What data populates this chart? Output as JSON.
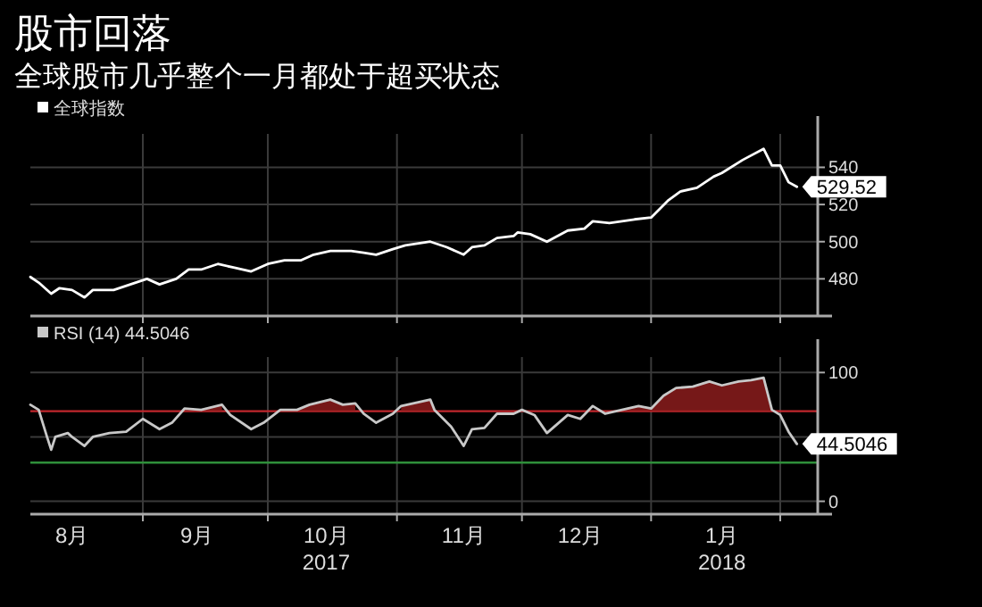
{
  "chart_data": [
    {
      "type": "line",
      "title": "股市回落",
      "subtitle": "全球股市几乎整个一月都处于超买状态",
      "legend": "top left",
      "grid": true,
      "tick_labels": "y",
      "xlim": [
        "2017-08-05",
        "2018-02-10"
      ],
      "ylim": [
        460,
        558
      ],
      "yticks": [
        480,
        500,
        520,
        540
      ],
      "xticks": [
        {
          "value": "2017-09-01",
          "label": null
        },
        {
          "value": "2017-10-01",
          "label": null
        },
        {
          "value": "2017-11-01",
          "label": null
        },
        {
          "value": "2017-12-01",
          "label": null
        },
        {
          "value": "2018-01-01",
          "label": null
        },
        {
          "value": "2018-02-01",
          "label": null
        }
      ],
      "series": [
        {
          "name": "全球指数",
          "color": "#ffffff",
          "x": [
            "2017-08-05",
            "2017-08-07",
            "2017-08-10",
            "2017-08-12",
            "2017-08-15",
            "2017-08-18",
            "2017-08-20",
            "2017-08-25",
            "2017-08-29",
            "2017-09-02",
            "2017-09-05",
            "2017-09-09",
            "2017-09-12",
            "2017-09-15",
            "2017-09-19",
            "2017-09-23",
            "2017-09-27",
            "2017-10-01",
            "2017-10-05",
            "2017-10-09",
            "2017-10-12",
            "2017-10-16",
            "2017-10-21",
            "2017-10-24",
            "2017-10-27",
            "2017-10-31",
            "2017-11-03",
            "2017-11-09",
            "2017-11-13",
            "2017-11-17",
            "2017-11-19",
            "2017-11-22",
            "2017-11-25",
            "2017-11-29",
            "2017-11-30",
            "2017-12-03",
            "2017-12-07",
            "2017-12-12",
            "2017-12-16",
            "2017-12-18",
            "2017-12-22",
            "2017-12-28",
            "2018-01-01",
            "2018-01-05",
            "2018-01-08",
            "2018-01-12",
            "2018-01-16",
            "2018-01-18",
            "2018-01-23",
            "2018-01-28",
            "2018-01-30",
            "2018-02-01",
            "2018-02-03",
            "2018-02-05"
          ],
          "values": [
            481,
            478,
            472,
            475,
            474,
            470,
            474,
            474,
            477,
            480,
            477,
            480,
            485,
            485,
            488,
            486,
            484,
            488,
            490,
            490,
            493,
            495,
            495,
            494,
            493,
            496,
            498,
            500,
            497,
            493,
            497,
            498,
            502,
            503,
            505,
            504,
            500,
            506,
            507,
            511,
            510,
            512,
            513,
            522,
            527,
            529,
            535,
            537,
            544,
            550,
            541,
            541,
            532,
            529.52
          ],
          "value_labels": [
            null,
            null,
            null,
            null,
            null,
            null,
            null,
            null,
            null,
            null,
            null,
            null,
            null,
            null,
            null,
            null,
            null,
            null,
            null,
            null,
            null,
            null,
            null,
            null,
            null,
            null,
            null,
            null,
            null,
            null,
            null,
            null,
            null,
            null,
            null,
            null,
            null,
            null,
            null,
            null,
            null,
            null,
            null,
            null,
            null,
            null,
            null,
            null,
            null,
            null,
            null,
            null,
            null,
            "529.52"
          ]
        }
      ]
    },
    {
      "type": "line",
      "legend": "top left",
      "grid": true,
      "xlim": [
        "2017-08-05",
        "2018-02-10"
      ],
      "ylim": [
        -10,
        112
      ],
      "yticks": [
        0,
        {
          "value": 50,
          "label": null
        },
        100
      ],
      "xticks": [
        {
          "value": "2017-08-15",
          "label": "8月"
        },
        {
          "value": "2017-09-01",
          "label": null
        },
        {
          "value": "2017-09-14",
          "label": "9月"
        },
        {
          "value": "2017-10-01",
          "label": null
        },
        {
          "value": "2017-10-15",
          "label": "10月\n2017"
        },
        {
          "value": "2017-11-01",
          "label": null
        },
        {
          "value": "2017-11-17",
          "label": "11月"
        },
        {
          "value": "2017-12-01",
          "label": null
        },
        {
          "value": "2017-12-15",
          "label": "12月"
        },
        {
          "value": "2018-01-01",
          "label": null
        },
        {
          "value": "2018-01-18",
          "label": "1月\n2018"
        },
        {
          "value": "2018-02-01",
          "label": null
        }
      ],
      "ref_lines": [
        {
          "axis": "y",
          "value": 70,
          "color": "#c0272d"
        },
        {
          "axis": "y",
          "value": 30,
          "color": "#2f8f3a"
        }
      ],
      "series": [
        {
          "name": "RSI (14) 44.5046",
          "color": "#c8c8c8",
          "x": [
            "2017-08-05",
            "2017-08-07",
            "2017-08-09",
            "2017-08-10",
            "2017-08-11",
            "2017-08-14",
            "2017-08-15",
            "2017-08-18",
            "2017-08-20",
            "2017-08-24",
            "2017-08-28",
            "2017-09-01",
            "2017-09-05",
            "2017-09-08",
            "2017-09-11",
            "2017-09-15",
            "2017-09-20",
            "2017-09-22",
            "2017-09-27",
            "2017-09-30",
            "2017-10-04",
            "2017-10-08",
            "2017-10-11",
            "2017-10-16",
            "2017-10-19",
            "2017-10-22",
            "2017-10-24",
            "2017-10-27",
            "2017-10-31",
            "2017-11-02",
            "2017-11-09",
            "2017-11-10",
            "2017-11-14",
            "2017-11-17",
            "2017-11-19",
            "2017-11-22",
            "2017-11-25",
            "2017-11-29",
            "2017-12-01",
            "2017-12-04",
            "2017-12-07",
            "2017-12-12",
            "2017-12-15",
            "2017-12-18",
            "2017-12-21",
            "2017-12-25",
            "2017-12-29",
            "2018-01-01",
            "2018-01-04",
            "2018-01-07",
            "2018-01-11",
            "2018-01-15",
            "2018-01-18",
            "2018-01-22",
            "2018-01-25",
            "2018-01-28",
            "2018-01-30",
            "2018-02-01",
            "2018-02-03",
            "2018-02-05"
          ],
          "values": [
            75,
            71,
            50,
            40,
            50,
            53,
            50,
            43,
            50,
            53,
            54,
            64,
            56,
            61,
            72,
            71,
            75,
            67,
            56,
            61,
            71,
            71,
            75,
            79,
            75,
            76,
            68,
            61,
            68,
            74,
            79,
            71,
            58,
            43,
            56,
            57,
            68,
            68,
            71,
            67,
            53,
            67,
            64,
            74,
            68,
            71,
            74,
            72,
            82,
            88,
            89,
            93,
            90,
            93,
            94,
            96,
            71,
            67,
            54,
            44.5046
          ],
          "upper": [
            null,
            null,
            null,
            null,
            null,
            null,
            null,
            null,
            null,
            null,
            null,
            null,
            null,
            null,
            72,
            71,
            75,
            null,
            null,
            null,
            71,
            71,
            75,
            79,
            75,
            76,
            null,
            null,
            null,
            74,
            79,
            71,
            null,
            null,
            null,
            null,
            null,
            null,
            null,
            null,
            null,
            null,
            null,
            null,
            null,
            71,
            74,
            72,
            82,
            88,
            89,
            93,
            90,
            93,
            94,
            96,
            71,
            null,
            null,
            null
          ],
          "lower": [
            null,
            null,
            null,
            null,
            null,
            null,
            null,
            null,
            null,
            null,
            null,
            null,
            null,
            null,
            70,
            70,
            70,
            null,
            null,
            null,
            70,
            70,
            70,
            70,
            70,
            70,
            null,
            null,
            null,
            70,
            70,
            70,
            null,
            null,
            null,
            null,
            null,
            null,
            null,
            null,
            null,
            null,
            null,
            null,
            null,
            70,
            70,
            70,
            70,
            70,
            70,
            70,
            70,
            70,
            70,
            70,
            70,
            null,
            null,
            null
          ],
          "value_labels": [
            null,
            null,
            null,
            null,
            null,
            null,
            null,
            null,
            null,
            null,
            null,
            null,
            null,
            null,
            null,
            null,
            null,
            null,
            null,
            null,
            null,
            null,
            null,
            null,
            null,
            null,
            null,
            null,
            null,
            null,
            null,
            null,
            null,
            null,
            null,
            null,
            null,
            null,
            null,
            null,
            null,
            null,
            null,
            null,
            null,
            null,
            null,
            null,
            null,
            null,
            null,
            null,
            null,
            null,
            null,
            null,
            null,
            null,
            null,
            "44.5046"
          ]
        }
      ]
    }
  ]
}
